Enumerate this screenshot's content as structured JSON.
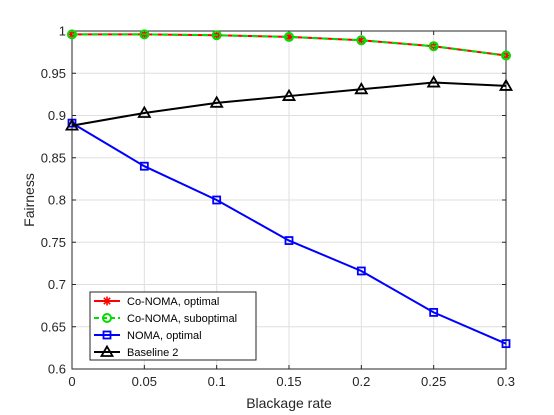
{
  "chart_data": {
    "type": "line",
    "xlabel": "Blackage rate",
    "ylabel": "Fairness",
    "xlim": [
      0,
      0.3
    ],
    "ylim": [
      0.6,
      1.0
    ],
    "xticks": [
      0,
      0.05,
      0.1,
      0.15,
      0.2,
      0.25,
      0.3
    ],
    "yticks": [
      0.6,
      0.65,
      0.7,
      0.75,
      0.8,
      0.85,
      0.9,
      0.95,
      1.0
    ],
    "xtick_labels": [
      "0",
      "0.05",
      "0.1",
      "0.15",
      "0.2",
      "0.25",
      "0.3"
    ],
    "ytick_labels": [
      "0.6",
      "0.65",
      "0.7",
      "0.75",
      "0.8",
      "0.85",
      "0.9",
      "0.95",
      "1"
    ],
    "grid": true,
    "legend_position": "bottom-left",
    "x": [
      0,
      0.05,
      0.1,
      0.15,
      0.2,
      0.25,
      0.3
    ],
    "series": [
      {
        "name": "Co-NOMA, optimal",
        "color": "#ff0000",
        "dash": "solid",
        "marker": "asterisk",
        "values": [
          0.996,
          0.996,
          0.995,
          0.993,
          0.989,
          0.982,
          0.971
        ]
      },
      {
        "name": "Co-NOMA, suboptimal",
        "color": "#00dd00",
        "dash": "dashed",
        "marker": "circle",
        "values": [
          0.996,
          0.996,
          0.995,
          0.993,
          0.989,
          0.982,
          0.971
        ]
      },
      {
        "name": "NOMA, optimal",
        "color": "#0000ff",
        "dash": "solid",
        "marker": "square",
        "values": [
          0.891,
          0.84,
          0.8,
          0.752,
          0.716,
          0.667,
          0.63
        ]
      },
      {
        "name": "Baseline 2",
        "color": "#000000",
        "dash": "solid",
        "marker": "triangle",
        "values": [
          0.888,
          0.903,
          0.915,
          0.923,
          0.931,
          0.939,
          0.935
        ]
      }
    ]
  }
}
